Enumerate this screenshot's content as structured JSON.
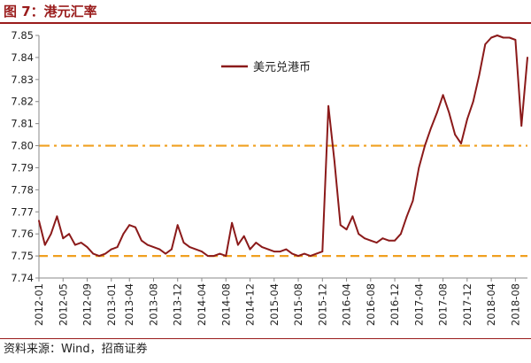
{
  "header": {
    "title": "图 7：港元汇率"
  },
  "footer": {
    "source": "资料来源：Wind，招商证券"
  },
  "colors": {
    "title": "#9a1c1c",
    "series": "#8b1a1a",
    "ref_dashdot": "#f0a020",
    "ref_dash": "#f0a020"
  },
  "chart_data": {
    "type": "line",
    "title": "",
    "xlabel": "",
    "ylabel": "",
    "ylim": [
      7.74,
      7.85
    ],
    "yticks": [
      "7.74",
      "7.75",
      "7.76",
      "7.77",
      "7.78",
      "7.79",
      "7.80",
      "7.81",
      "7.82",
      "7.83",
      "7.84",
      "7.85"
    ],
    "xticks": [
      "2012-01",
      "2012-05",
      "2012-09",
      "2013-01",
      "2013-04",
      "2013-08",
      "2013-12",
      "2014-04",
      "2014-08",
      "2014-12",
      "2015-04",
      "2015-08",
      "2015-12",
      "2016-04",
      "2016-08",
      "2016-12",
      "2017-04",
      "2017-08",
      "2017-12",
      "2018-04",
      "2018-08"
    ],
    "xrange": [
      "2012-01",
      "2018-10"
    ],
    "legend": {
      "position": "top-center"
    },
    "series": [
      {
        "name": "美元兑港币",
        "color": "#8b1a1a",
        "x": [
          "2012-01",
          "2012-02",
          "2012-03",
          "2012-04",
          "2012-05",
          "2012-06",
          "2012-07",
          "2012-08",
          "2012-09",
          "2012-10",
          "2012-11",
          "2012-12",
          "2013-01",
          "2013-02",
          "2013-03",
          "2013-04",
          "2013-05",
          "2013-06",
          "2013-07",
          "2013-08",
          "2013-09",
          "2013-10",
          "2013-11",
          "2013-12",
          "2014-01",
          "2014-02",
          "2014-03",
          "2014-04",
          "2014-05",
          "2014-06",
          "2014-07",
          "2014-08",
          "2014-09",
          "2014-10",
          "2014-11",
          "2014-12",
          "2015-01",
          "2015-02",
          "2015-03",
          "2015-04",
          "2015-05",
          "2015-06",
          "2015-07",
          "2015-08",
          "2015-09",
          "2015-10",
          "2015-11",
          "2015-12",
          "2016-01",
          "2016-02",
          "2016-03",
          "2016-04",
          "2016-05",
          "2016-06",
          "2016-07",
          "2016-08",
          "2016-09",
          "2016-10",
          "2016-11",
          "2016-12",
          "2017-01",
          "2017-02",
          "2017-03",
          "2017-04",
          "2017-05",
          "2017-06",
          "2017-07",
          "2017-08",
          "2017-09",
          "2017-10",
          "2017-11",
          "2017-12",
          "2018-01",
          "2018-02",
          "2018-03",
          "2018-04",
          "2018-05",
          "2018-06",
          "2018-07",
          "2018-08",
          "2018-09",
          "2018-10"
        ],
        "values": [
          7.766,
          7.755,
          7.76,
          7.768,
          7.758,
          7.76,
          7.755,
          7.756,
          7.754,
          7.751,
          7.75,
          7.751,
          7.753,
          7.754,
          7.76,
          7.764,
          7.763,
          7.757,
          7.755,
          7.754,
          7.753,
          7.751,
          7.753,
          7.764,
          7.756,
          7.754,
          7.753,
          7.752,
          7.75,
          7.75,
          7.751,
          7.75,
          7.765,
          7.755,
          7.759,
          7.753,
          7.756,
          7.754,
          7.753,
          7.752,
          7.752,
          7.753,
          7.751,
          7.75,
          7.751,
          7.75,
          7.751,
          7.752,
          7.818,
          7.793,
          7.764,
          7.762,
          7.768,
          7.76,
          7.758,
          7.757,
          7.756,
          7.758,
          7.757,
          7.757,
          7.76,
          7.768,
          7.775,
          7.79,
          7.8,
          7.808,
          7.815,
          7.823,
          7.815,
          7.805,
          7.801,
          7.812,
          7.82,
          7.832,
          7.846,
          7.849,
          7.85,
          7.849,
          7.849,
          7.848,
          7.809,
          7.84
        ]
      }
    ],
    "reference_lines": [
      {
        "value": 7.8,
        "style": "dash-dot",
        "color": "#f0a020"
      },
      {
        "value": 7.75,
        "style": "dashed",
        "color": "#f0a020"
      }
    ]
  }
}
